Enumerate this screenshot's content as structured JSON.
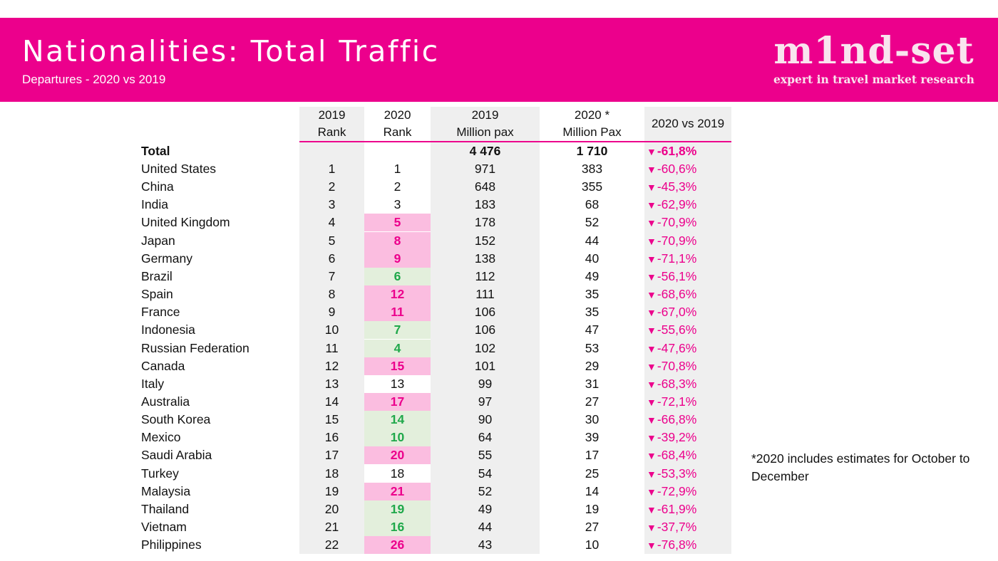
{
  "header": {
    "title": "Nationalities: Total Traffic",
    "subtitle": "Departures - 2020 vs 2019",
    "logo_word": "m1nd-set",
    "logo_tagline": "expert in travel market research"
  },
  "colors": {
    "brand_pink": "#ec008c",
    "rank_down_bg": "#fbbde0",
    "rank_up_bg": "#e3efdc",
    "rank_up_text": "#1fa84a",
    "column_shade": "#efefef"
  },
  "table": {
    "headers": {
      "rank_2019": "2019\nRank",
      "rank_2020": "2020\nRank",
      "pax_2019": "2019\nMillion pax",
      "pax_2020": "2020 *\nMillion Pax",
      "change": "2020 vs 2019"
    },
    "total": {
      "name": "Total",
      "pax_2019": "4 476",
      "pax_2020": "1 710",
      "change": "-61,8%"
    },
    "rows": [
      {
        "name": "United States",
        "rank_2019": "1",
        "rank_2020": "1",
        "trend": "same",
        "pax_2019": "971",
        "pax_2020": "383",
        "change": "-60,6%"
      },
      {
        "name": "China",
        "rank_2019": "2",
        "rank_2020": "2",
        "trend": "same",
        "pax_2019": "648",
        "pax_2020": "355",
        "change": "-45,3%"
      },
      {
        "name": "India",
        "rank_2019": "3",
        "rank_2020": "3",
        "trend": "same",
        "pax_2019": "183",
        "pax_2020": "68",
        "change": "-62,9%"
      },
      {
        "name": "United Kingdom",
        "rank_2019": "4",
        "rank_2020": "5",
        "trend": "down",
        "pax_2019": "178",
        "pax_2020": "52",
        "change": "-70,9%"
      },
      {
        "name": "Japan",
        "rank_2019": "5",
        "rank_2020": "8",
        "trend": "down",
        "pax_2019": "152",
        "pax_2020": "44",
        "change": "-70,9%"
      },
      {
        "name": "Germany",
        "rank_2019": "6",
        "rank_2020": "9",
        "trend": "down",
        "pax_2019": "138",
        "pax_2020": "40",
        "change": "-71,1%"
      },
      {
        "name": "Brazil",
        "rank_2019": "7",
        "rank_2020": "6",
        "trend": "up",
        "pax_2019": "112",
        "pax_2020": "49",
        "change": "-56,1%"
      },
      {
        "name": "Spain",
        "rank_2019": "8",
        "rank_2020": "12",
        "trend": "down",
        "pax_2019": "111",
        "pax_2020": "35",
        "change": "-68,6%"
      },
      {
        "name": "France",
        "rank_2019": "9",
        "rank_2020": "11",
        "trend": "down",
        "pax_2019": "106",
        "pax_2020": "35",
        "change": "-67,0%"
      },
      {
        "name": "Indonesia",
        "rank_2019": "10",
        "rank_2020": "7",
        "trend": "up",
        "pax_2019": "106",
        "pax_2020": "47",
        "change": "-55,6%"
      },
      {
        "name": "Russian Federation",
        "rank_2019": "11",
        "rank_2020": "4",
        "trend": "up",
        "pax_2019": "102",
        "pax_2020": "53",
        "change": "-47,6%"
      },
      {
        "name": "Canada",
        "rank_2019": "12",
        "rank_2020": "15",
        "trend": "down",
        "pax_2019": "101",
        "pax_2020": "29",
        "change": "-70,8%"
      },
      {
        "name": "Italy",
        "rank_2019": "13",
        "rank_2020": "13",
        "trend": "same",
        "pax_2019": "99",
        "pax_2020": "31",
        "change": "-68,3%"
      },
      {
        "name": "Australia",
        "rank_2019": "14",
        "rank_2020": "17",
        "trend": "down",
        "pax_2019": "97",
        "pax_2020": "27",
        "change": "-72,1%"
      },
      {
        "name": "South Korea",
        "rank_2019": "15",
        "rank_2020": "14",
        "trend": "up",
        "pax_2019": "90",
        "pax_2020": "30",
        "change": "-66,8%"
      },
      {
        "name": "Mexico",
        "rank_2019": "16",
        "rank_2020": "10",
        "trend": "up",
        "pax_2019": "64",
        "pax_2020": "39",
        "change": "-39,2%"
      },
      {
        "name": "Saudi Arabia",
        "rank_2019": "17",
        "rank_2020": "20",
        "trend": "down",
        "pax_2019": "55",
        "pax_2020": "17",
        "change": "-68,4%"
      },
      {
        "name": "Turkey",
        "rank_2019": "18",
        "rank_2020": "18",
        "trend": "same",
        "pax_2019": "54",
        "pax_2020": "25",
        "change": "-53,3%"
      },
      {
        "name": "Malaysia",
        "rank_2019": "19",
        "rank_2020": "21",
        "trend": "down",
        "pax_2019": "52",
        "pax_2020": "14",
        "change": "-72,9%"
      },
      {
        "name": "Thailand",
        "rank_2019": "20",
        "rank_2020": "19",
        "trend": "up",
        "pax_2019": "49",
        "pax_2020": "19",
        "change": "-61,9%"
      },
      {
        "name": "Vietnam",
        "rank_2019": "21",
        "rank_2020": "16",
        "trend": "up",
        "pax_2019": "44",
        "pax_2020": "27",
        "change": "-37,7%"
      },
      {
        "name": "Philippines",
        "rank_2019": "22",
        "rank_2020": "26",
        "trend": "down",
        "pax_2019": "43",
        "pax_2020": "10",
        "change": "-76,8%"
      }
    ]
  },
  "footnote": "*2020 includes estimates for October to December"
}
